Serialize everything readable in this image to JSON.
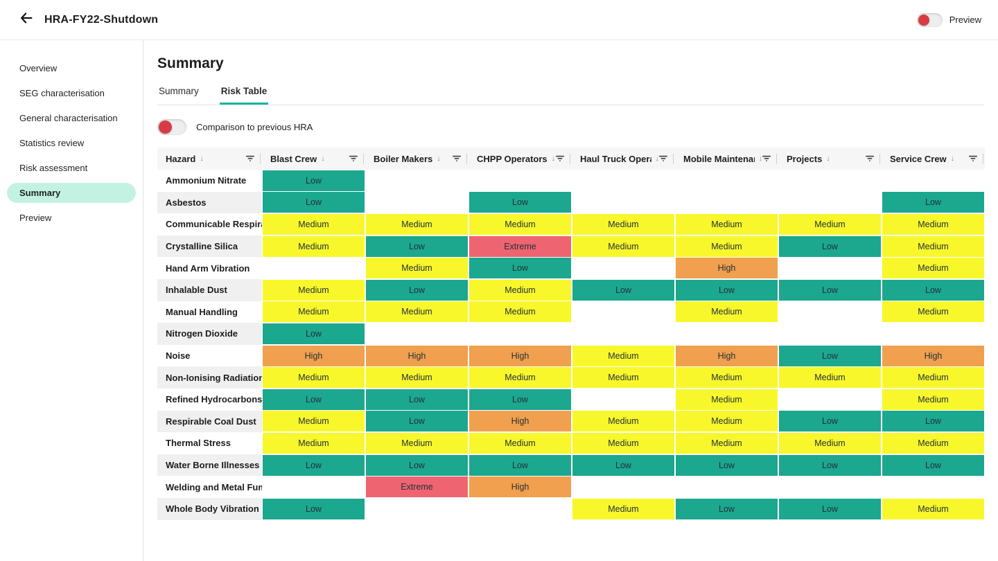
{
  "topbar": {
    "title": "HRA-FY22-Shutdown",
    "preview_label": "Preview",
    "preview_toggle_on": false
  },
  "icons": {
    "back": "arrow-left-icon",
    "sort": "arrow-down-icon",
    "filter": "filter-lines-icon"
  },
  "sidebar": {
    "items": [
      {
        "label": "Overview",
        "active": false
      },
      {
        "label": "SEG characterisation",
        "active": false
      },
      {
        "label": "General characterisation",
        "active": false
      },
      {
        "label": "Statistics review",
        "active": false
      },
      {
        "label": "Risk assessment",
        "active": false
      },
      {
        "label": "Summary",
        "active": true
      },
      {
        "label": "Preview",
        "active": false
      }
    ]
  },
  "main": {
    "title": "Summary",
    "tabs": [
      {
        "label": "Summary",
        "active": false
      },
      {
        "label": "Risk Table",
        "active": true
      }
    ],
    "comparison_toggle_label": "Comparison to previous HRA",
    "comparison_toggle_on": false
  },
  "risk_colors": {
    "Low": "#1CA78F",
    "Medium": "#F8F72B",
    "High": "#F0A04E",
    "Extreme": "#EE6470"
  },
  "accent_colors": {
    "tab_underline": "#1AB5A0",
    "sidebar_active_pill": "#C3F2E3",
    "toggle_knob_red": "#D93B45"
  },
  "table": {
    "columns": [
      "Hazard",
      "Blast Crew",
      "Boiler Makers",
      "CHPP Operators",
      "Haul Truck Operators",
      "Mobile Maintenance",
      "Projects",
      "Service Crew"
    ],
    "rows": [
      {
        "hazard": "Ammonium Nitrate",
        "values": [
          "Low",
          null,
          null,
          null,
          null,
          null,
          null
        ]
      },
      {
        "hazard": "Asbestos",
        "values": [
          "Low",
          null,
          "Low",
          null,
          null,
          null,
          "Low"
        ]
      },
      {
        "hazard": "Communicable Respiratory",
        "values": [
          "Medium",
          "Medium",
          "Medium",
          "Medium",
          "Medium",
          "Medium",
          "Medium"
        ]
      },
      {
        "hazard": "Crystalline Silica",
        "values": [
          "Medium",
          "Low",
          "Extreme",
          "Medium",
          "Medium",
          "Low",
          "Medium"
        ]
      },
      {
        "hazard": "Hand Arm Vibration",
        "values": [
          null,
          "Medium",
          "Low",
          null,
          "High",
          null,
          "Medium"
        ]
      },
      {
        "hazard": "Inhalable Dust",
        "values": [
          "Medium",
          "Low",
          "Medium",
          "Low",
          "Low",
          "Low",
          "Low"
        ]
      },
      {
        "hazard": "Manual Handling",
        "values": [
          "Medium",
          "Medium",
          "Medium",
          null,
          "Medium",
          null,
          "Medium"
        ]
      },
      {
        "hazard": "Nitrogen Dioxide",
        "values": [
          "Low",
          null,
          null,
          null,
          null,
          null,
          null
        ]
      },
      {
        "hazard": "Noise",
        "values": [
          "High",
          "High",
          "High",
          "Medium",
          "High",
          "Low",
          "High"
        ]
      },
      {
        "hazard": "Non-Ionising Radiation",
        "values": [
          "Medium",
          "Medium",
          "Medium",
          "Medium",
          "Medium",
          "Medium",
          "Medium"
        ]
      },
      {
        "hazard": "Refined Hydrocarbons",
        "values": [
          "Low",
          "Low",
          "Low",
          null,
          "Medium",
          null,
          "Medium"
        ]
      },
      {
        "hazard": "Respirable Coal Dust",
        "values": [
          "Medium",
          "Low",
          "High",
          "Medium",
          "Medium",
          "Low",
          "Low"
        ]
      },
      {
        "hazard": "Thermal Stress",
        "values": [
          "Medium",
          "Medium",
          "Medium",
          "Medium",
          "Medium",
          "Medium",
          "Medium"
        ]
      },
      {
        "hazard": "Water Borne Illnesses",
        "values": [
          "Low",
          "Low",
          "Low",
          "Low",
          "Low",
          "Low",
          "Low"
        ]
      },
      {
        "hazard": "Welding and Metal Fume",
        "values": [
          null,
          "Extreme",
          "High",
          null,
          null,
          null,
          null
        ]
      },
      {
        "hazard": "Whole Body Vibration",
        "values": [
          "Low",
          null,
          null,
          "Medium",
          "Low",
          "Low",
          "Medium"
        ]
      }
    ]
  }
}
